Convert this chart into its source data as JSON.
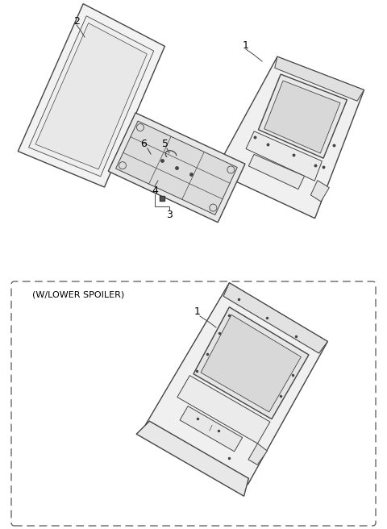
{
  "background_color": "#ffffff",
  "line_color": "#444444",
  "label_color": "#000000",
  "fig_width": 4.8,
  "fig_height": 6.56,
  "dpi": 100,
  "dashed_box_label": "(W/LOWER SPOILER)"
}
